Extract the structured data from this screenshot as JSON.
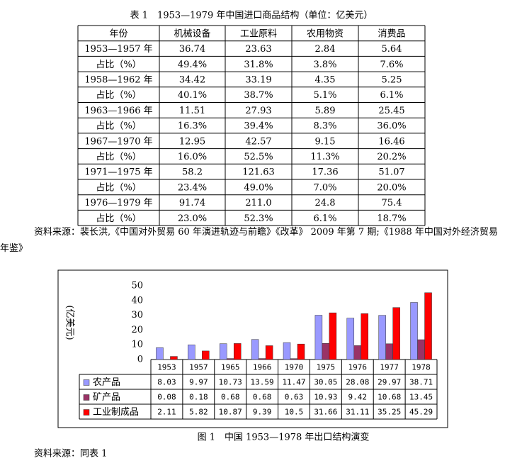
{
  "table": {
    "title": "表 1　1953—1979 年中国进口商品结构（单位：亿美元）",
    "header": [
      "年份",
      "机械设备",
      "工业原料",
      "农用物资",
      "消费品"
    ],
    "rows": [
      [
        "1953—1957 年",
        "36.74",
        "23.63",
        "2.84",
        "5.64"
      ],
      [
        "占比（%）",
        "49.4%",
        "31.8%",
        "3.8%",
        "7.6%"
      ],
      [
        "1958—1962 年",
        "34.42",
        "33.19",
        "4.35",
        "5.25"
      ],
      [
        "占比（%）",
        "40.1%",
        "38.7%",
        "5.1%",
        "6.1%"
      ],
      [
        "1963—1966 年",
        "11.51",
        "27.93",
        "5.89",
        "25.45"
      ],
      [
        "占比（%）",
        "16.3%",
        "39.4%",
        "8.3%",
        "36.0%"
      ],
      [
        "1967—1970 年",
        "12.95",
        "42.57",
        "9.15",
        "16.46"
      ],
      [
        "占比（%）",
        "16.0%",
        "52.5%",
        "11.3%",
        "20.2%"
      ],
      [
        "1971—1975 年",
        "58.2",
        "121.63",
        "17.36",
        "51.07"
      ],
      [
        "占比（%）",
        "23.4%",
        "49.0%",
        "7.0%",
        "20.0%"
      ],
      [
        "1976—1979 年",
        "91.74",
        "211.0",
        "24.8",
        "75.4"
      ],
      [
        "占比（%）",
        "23.0%",
        "52.3%",
        "6.1%",
        "18.7%"
      ]
    ]
  },
  "source": "资料来源：裴长洪,《中国对外贸易 60 年演进轨迹与前瞻》《改革》 2009 年第 7 期;《1988 年中国对外经济贸易年鉴》",
  "chart_data": {
    "type": "bar",
    "y_label": "(亿美元)",
    "categories": [
      "1953",
      "1957",
      "1965",
      "1966",
      "1970",
      "1975",
      "1976",
      "1977",
      "1978"
    ],
    "series": [
      {
        "name": "农产品",
        "color": "#9999ff",
        "values": [
          8.03,
          9.97,
          10.73,
          13.59,
          11.47,
          30.05,
          28.08,
          29.97,
          38.71
        ]
      },
      {
        "name": "矿产品",
        "color": "#993366",
        "values": [
          0.08,
          0.18,
          0.68,
          0.68,
          0.63,
          10.93,
          9.42,
          10.68,
          13.45
        ]
      },
      {
        "name": "工业制成品",
        "color": "#ff0000",
        "values": [
          2.11,
          5.82,
          10.87,
          9.39,
          10.5,
          31.66,
          31.11,
          35.25,
          45.29
        ]
      }
    ],
    "ylim": [
      0,
      50
    ],
    "yticks": [
      0,
      10,
      20,
      30,
      40,
      50
    ],
    "grid": false
  },
  "caption": "图 1　中国 1953—1978 年出口结构演变",
  "chart_source": "资料来源：同表 1"
}
